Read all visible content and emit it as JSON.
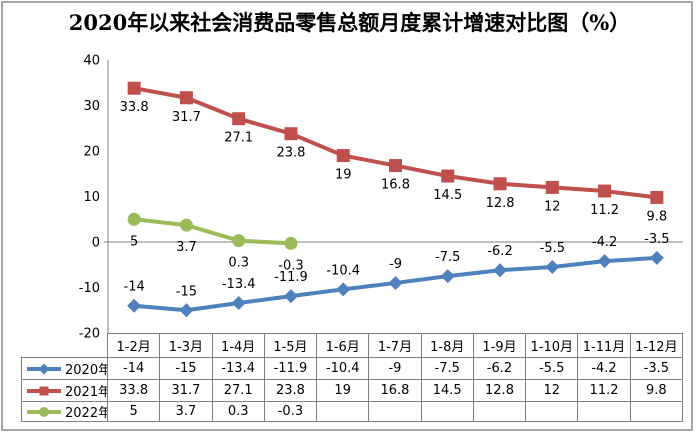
{
  "title": "2020年以来社会消费品零售总额月度累计增速对比图（%）",
  "colors": {
    "axis": "#808080",
    "table_border": "#808080",
    "frame": "#A6A6A6",
    "label_text": "#000000",
    "series_blue": "#4F81BD",
    "series_red": "#C0504D",
    "series_green": "#9BBB59"
  },
  "chart_data": {
    "type": "line",
    "title": "2020年以来社会消费品零售总额月度累计增速对比图（%）",
    "categories": [
      "1-2月",
      "1-3月",
      "1-4月",
      "1-5月",
      "1-6月",
      "1-7月",
      "1-8月",
      "1-9月",
      "1-10月",
      "1-11月",
      "1-12月"
    ],
    "series": [
      {
        "name": "2020年",
        "color": "#4F81BD",
        "marker": "diamond",
        "label_side": "above",
        "values": [
          -14,
          -15,
          -13.4,
          -11.9,
          -10.4,
          -9,
          -7.5,
          -6.2,
          -5.5,
          -4.2,
          -3.5
        ]
      },
      {
        "name": "2021年",
        "color": "#C0504D",
        "marker": "square",
        "label_side": "below",
        "values": [
          33.8,
          31.7,
          27.1,
          23.8,
          19,
          16.8,
          14.5,
          12.8,
          12,
          11.2,
          9.8
        ]
      },
      {
        "name": "2022年",
        "color": "#9BBB59",
        "marker": "circle",
        "label_side": "below",
        "values": [
          5,
          3.7,
          0.3,
          -0.3,
          null,
          null,
          null,
          null,
          null,
          null,
          null
        ]
      }
    ],
    "xlabel": "",
    "ylabel": "",
    "ylim": [
      -20,
      40
    ],
    "y_ticks": [
      40,
      30,
      20,
      10,
      0,
      -10,
      -20
    ],
    "grid": "zero-line-only",
    "legend_position": "data-table-left",
    "data_labels": true
  }
}
